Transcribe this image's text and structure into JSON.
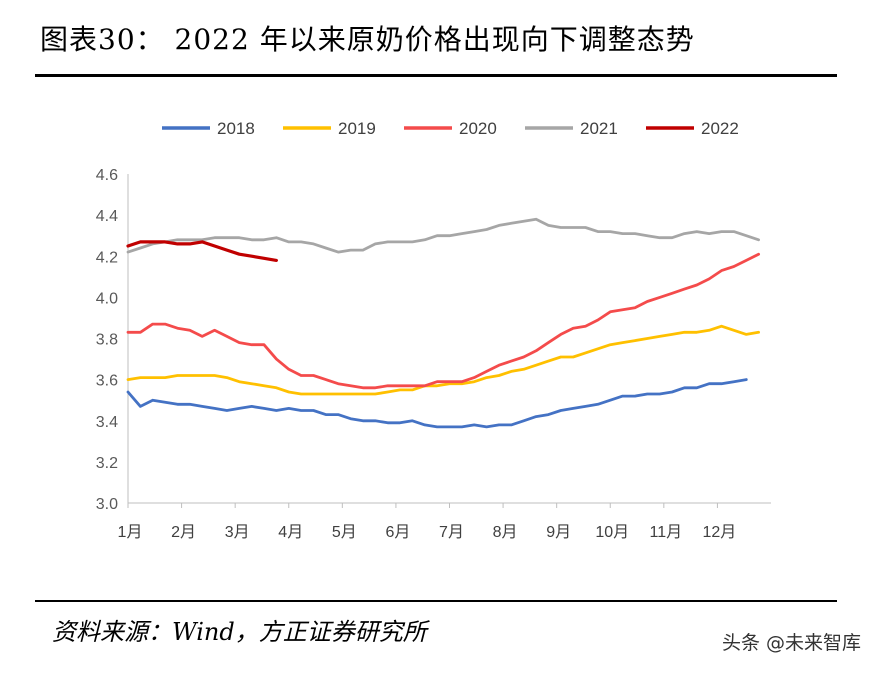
{
  "header": {
    "title": "图表30：  2022 年以来原奶价格出现向下调整态势"
  },
  "footer": {
    "source": "资料来源：Wind，方正证券研究所",
    "watermark": "头条 @未来智库"
  },
  "chart_data": {
    "type": "line",
    "title": "",
    "xlabel": "",
    "ylabel": "",
    "x_ticks": [
      "1月",
      "2月",
      "3月",
      "4月",
      "5月",
      "6月",
      "7月",
      "8月",
      "9月",
      "10月",
      "11月",
      "12月"
    ],
    "x_unit": "week",
    "x_range": [
      1,
      53
    ],
    "ylim": [
      3.0,
      4.6
    ],
    "y_ticks": [
      "3.0",
      "3.2",
      "3.4",
      "3.6",
      "3.8",
      "4.0",
      "4.2",
      "4.4",
      "4.6"
    ],
    "grid": false,
    "legend_position": "top",
    "series": [
      {
        "name": "2018",
        "color": "#4472c4",
        "values": [
          3.54,
          3.47,
          3.5,
          3.49,
          3.48,
          3.48,
          3.47,
          3.46,
          3.45,
          3.46,
          3.47,
          3.46,
          3.45,
          3.46,
          3.45,
          3.45,
          3.43,
          3.43,
          3.41,
          3.4,
          3.4,
          3.39,
          3.39,
          3.4,
          3.38,
          3.37,
          3.37,
          3.37,
          3.38,
          3.37,
          3.38,
          3.38,
          3.4,
          3.42,
          3.43,
          3.45,
          3.46,
          3.47,
          3.48,
          3.5,
          3.52,
          3.52,
          3.53,
          3.53,
          3.54,
          3.56,
          3.56,
          3.58,
          3.58,
          3.59,
          3.6
        ]
      },
      {
        "name": "2019",
        "color": "#ffc000",
        "values": [
          3.6,
          3.61,
          3.61,
          3.61,
          3.62,
          3.62,
          3.62,
          3.62,
          3.61,
          3.59,
          3.58,
          3.57,
          3.56,
          3.54,
          3.53,
          3.53,
          3.53,
          3.53,
          3.53,
          3.53,
          3.53,
          3.54,
          3.55,
          3.55,
          3.57,
          3.57,
          3.58,
          3.58,
          3.59,
          3.61,
          3.62,
          3.64,
          3.65,
          3.67,
          3.69,
          3.71,
          3.71,
          3.73,
          3.75,
          3.77,
          3.78,
          3.79,
          3.8,
          3.81,
          3.82,
          3.83,
          3.83,
          3.84,
          3.86,
          3.84,
          3.82,
          3.83
        ]
      },
      {
        "name": "2020",
        "color": "#f44b4b",
        "values": [
          3.83,
          3.83,
          3.87,
          3.87,
          3.85,
          3.84,
          3.81,
          3.84,
          3.81,
          3.78,
          3.77,
          3.77,
          3.7,
          3.65,
          3.62,
          3.62,
          3.6,
          3.58,
          3.57,
          3.56,
          3.56,
          3.57,
          3.57,
          3.57,
          3.57,
          3.59,
          3.59,
          3.59,
          3.61,
          3.64,
          3.67,
          3.69,
          3.71,
          3.74,
          3.78,
          3.82,
          3.85,
          3.86,
          3.89,
          3.93,
          3.94,
          3.95,
          3.98,
          4.0,
          4.02,
          4.04,
          4.06,
          4.09,
          4.13,
          4.15,
          4.18,
          4.21
        ]
      },
      {
        "name": "2021",
        "color": "#a6a6a6",
        "values": [
          4.22,
          4.24,
          4.26,
          4.27,
          4.28,
          4.28,
          4.28,
          4.29,
          4.29,
          4.29,
          4.28,
          4.28,
          4.29,
          4.27,
          4.27,
          4.26,
          4.24,
          4.22,
          4.23,
          4.23,
          4.26,
          4.27,
          4.27,
          4.27,
          4.28,
          4.3,
          4.3,
          4.31,
          4.32,
          4.33,
          4.35,
          4.36,
          4.37,
          4.38,
          4.35,
          4.34,
          4.34,
          4.34,
          4.32,
          4.32,
          4.31,
          4.31,
          4.3,
          4.29,
          4.29,
          4.31,
          4.32,
          4.31,
          4.32,
          4.32,
          4.3,
          4.28
        ]
      },
      {
        "name": "2022",
        "color": "#c00000",
        "values": [
          4.25,
          4.27,
          4.27,
          4.27,
          4.26,
          4.26,
          4.27,
          4.25,
          4.23,
          4.21,
          4.2,
          4.19,
          4.18
        ]
      }
    ]
  }
}
